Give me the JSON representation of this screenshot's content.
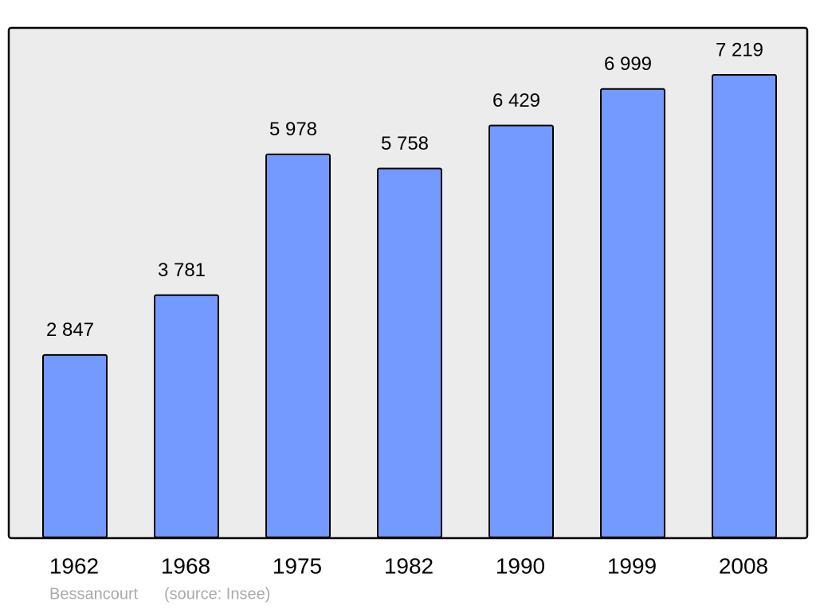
{
  "chart_data": {
    "type": "bar",
    "title": "Bessancourt",
    "source": "(source: Insee)",
    "categories": [
      "1962",
      "1968",
      "1975",
      "1982",
      "1990",
      "1999",
      "2008"
    ],
    "values": [
      2847,
      3781,
      5978,
      5758,
      6429,
      6999,
      7219
    ],
    "value_labels": [
      "2 847",
      "3 781",
      "5 978",
      "5 758",
      "6 429",
      "6 999",
      "7 219"
    ],
    "color": "#7499ff",
    "grid": false
  }
}
